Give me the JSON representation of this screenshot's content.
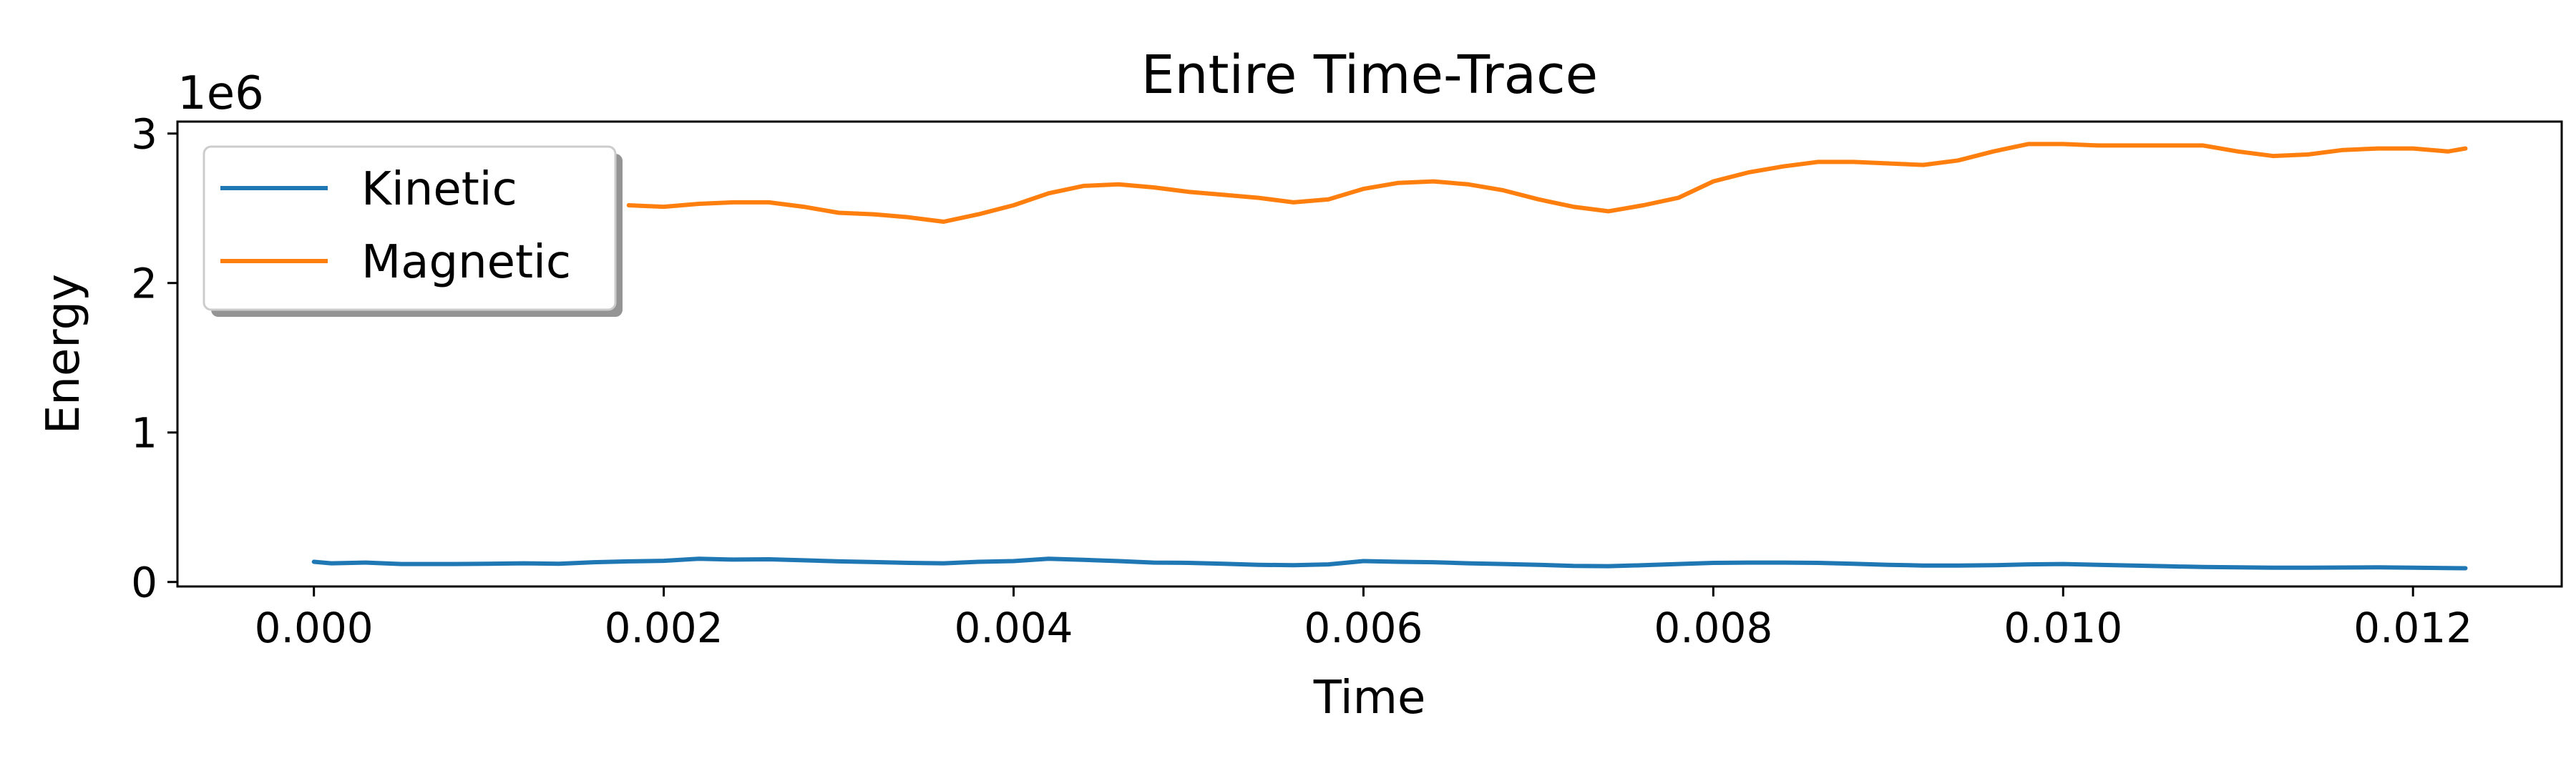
{
  "chart_data": {
    "type": "line",
    "title": "Entire Time-Trace",
    "xlabel": "Time",
    "ylabel": "Energy",
    "y_offset_label": "1e6",
    "xlim": [
      -0.00078,
      0.01285
    ],
    "ylim": [
      -30000,
      3080000
    ],
    "x_ticks": [
      0.0,
      0.002,
      0.004,
      0.006,
      0.008,
      0.01,
      0.012
    ],
    "x_tick_labels": [
      "0.000",
      "0.002",
      "0.004",
      "0.006",
      "0.008",
      "0.010",
      "0.012"
    ],
    "y_ticks": [
      0,
      1000000,
      2000000,
      3000000
    ],
    "y_tick_labels": [
      "0",
      "1",
      "2",
      "3"
    ],
    "grid": false,
    "legend_placement": "upper-left",
    "series": [
      {
        "name": "Kinetic",
        "color": "#1f77b4",
        "x": [
          0.0,
          0.0001,
          0.0003,
          0.0005,
          0.0008,
          0.001,
          0.0012,
          0.0014,
          0.0016,
          0.0018,
          0.002,
          0.0022,
          0.0024,
          0.0026,
          0.0028,
          0.003,
          0.0032,
          0.0034,
          0.0036,
          0.0038,
          0.004,
          0.0042,
          0.0044,
          0.0046,
          0.0048,
          0.005,
          0.0052,
          0.0054,
          0.0056,
          0.0058,
          0.006,
          0.0062,
          0.0064,
          0.0066,
          0.0068,
          0.007,
          0.0072,
          0.0074,
          0.0076,
          0.0078,
          0.008,
          0.0082,
          0.0084,
          0.0086,
          0.0088,
          0.009,
          0.0092,
          0.0094,
          0.0096,
          0.0098,
          0.01,
          0.0102,
          0.0104,
          0.0106,
          0.0108,
          0.011,
          0.0112,
          0.0114,
          0.0116,
          0.0118,
          0.012,
          0.0123
        ],
        "y": [
          135000,
          125000,
          130000,
          120000,
          120000,
          122000,
          125000,
          122000,
          132000,
          138000,
          142000,
          155000,
          150000,
          152000,
          145000,
          138000,
          133000,
          128000,
          125000,
          135000,
          140000,
          155000,
          148000,
          140000,
          130000,
          128000,
          122000,
          115000,
          112000,
          118000,
          140000,
          135000,
          132000,
          125000,
          120000,
          115000,
          108000,
          106000,
          112000,
          120000,
          128000,
          130000,
          130000,
          128000,
          122000,
          115000,
          110000,
          110000,
          112000,
          118000,
          120000,
          115000,
          110000,
          105000,
          100000,
          98000,
          96000,
          96000,
          97000,
          98000,
          96000,
          92000
        ]
      },
      {
        "name": "Magnetic",
        "color": "#ff7f0e",
        "x": [
          0.0018,
          0.002,
          0.0022,
          0.0024,
          0.0026,
          0.0028,
          0.003,
          0.0032,
          0.0034,
          0.0036,
          0.0038,
          0.004,
          0.0042,
          0.0044,
          0.0046,
          0.0048,
          0.005,
          0.0052,
          0.0054,
          0.0056,
          0.0058,
          0.006,
          0.0062,
          0.0064,
          0.0066,
          0.0068,
          0.007,
          0.0072,
          0.0074,
          0.0076,
          0.0078,
          0.008,
          0.0082,
          0.0084,
          0.0086,
          0.0088,
          0.009,
          0.0092,
          0.0094,
          0.0096,
          0.0098,
          0.01,
          0.0102,
          0.0104,
          0.0106,
          0.0108,
          0.011,
          0.0112,
          0.0114,
          0.0116,
          0.0118,
          0.012,
          0.0122,
          0.0123
        ],
        "y": [
          2520000,
          2510000,
          2530000,
          2540000,
          2540000,
          2510000,
          2470000,
          2460000,
          2440000,
          2410000,
          2460000,
          2520000,
          2600000,
          2650000,
          2660000,
          2640000,
          2610000,
          2590000,
          2570000,
          2540000,
          2560000,
          2630000,
          2670000,
          2680000,
          2660000,
          2620000,
          2560000,
          2510000,
          2480000,
          2520000,
          2570000,
          2680000,
          2740000,
          2780000,
          2810000,
          2810000,
          2800000,
          2790000,
          2820000,
          2880000,
          2930000,
          2930000,
          2920000,
          2920000,
          2920000,
          2920000,
          2880000,
          2850000,
          2860000,
          2890000,
          2900000,
          2900000,
          2880000,
          2900000
        ]
      }
    ]
  }
}
